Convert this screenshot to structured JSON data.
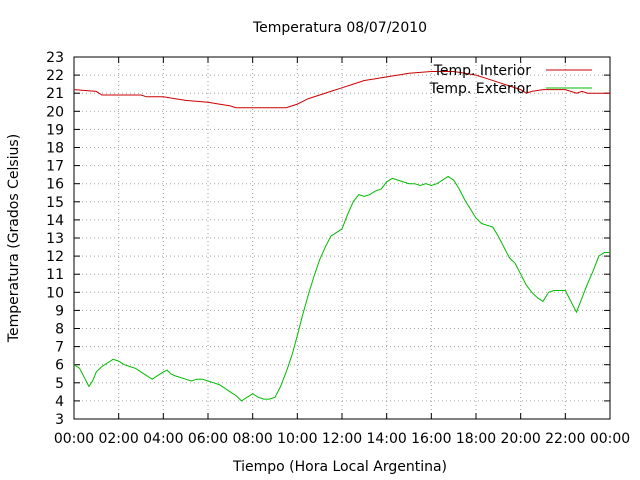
{
  "chart_data": {
    "type": "line",
    "title": "Temperatura 08/07/2010",
    "xlabel": "Tiempo (Hora Local Argentina)",
    "ylabel": "Temperatura (Grados Celsius)",
    "xlim": [
      "00:00",
      "24:00"
    ],
    "ylim": [
      3,
      23
    ],
    "grid": true,
    "legend_position": "top-right",
    "x_tick_labels": [
      "00:00",
      "02:00",
      "04:00",
      "06:00",
      "08:00",
      "10:00",
      "12:00",
      "14:00",
      "16:00",
      "18:00",
      "20:00",
      "22:00",
      "00:00"
    ],
    "y_tick_labels": [
      "3",
      "4",
      "5",
      "6",
      "7",
      "8",
      "9",
      "10",
      "11",
      "12",
      "13",
      "14",
      "15",
      "16",
      "17",
      "18",
      "19",
      "20",
      "21",
      "22",
      "23"
    ],
    "series": [
      {
        "name": "Temp. Interior",
        "color": "#cc0000",
        "x": [
          "00:00",
          "01:00",
          "01:15",
          "02:00",
          "03:00",
          "03:15",
          "04:00",
          "04:30",
          "05:00",
          "06:00",
          "06:30",
          "07:00",
          "07:15",
          "07:30",
          "08:00",
          "09:00",
          "09:30",
          "10:00",
          "10:30",
          "11:00",
          "11:30",
          "12:00",
          "12:30",
          "13:00",
          "13:30",
          "14:00",
          "14:30",
          "15:00",
          "16:00",
          "16:30",
          "17:00",
          "17:30",
          "18:00",
          "18:30",
          "19:00",
          "19:30",
          "20:00",
          "20:15",
          "20:30",
          "21:00",
          "21:30",
          "22:00",
          "22:15",
          "22:30",
          "22:45",
          "23:00",
          "23:30",
          "24:00"
        ],
        "values": [
          21.2,
          21.1,
          20.9,
          20.9,
          20.9,
          20.8,
          20.8,
          20.7,
          20.6,
          20.5,
          20.4,
          20.3,
          20.2,
          20.2,
          20.2,
          20.2,
          20.2,
          20.4,
          20.7,
          20.9,
          21.1,
          21.3,
          21.5,
          21.7,
          21.8,
          21.9,
          22.0,
          22.1,
          22.2,
          22.2,
          22.2,
          22.1,
          22.0,
          21.8,
          21.6,
          21.4,
          21.2,
          21.0,
          21.1,
          21.2,
          21.2,
          21.2,
          21.1,
          21.0,
          21.1,
          21.0,
          21.0,
          21.0
        ]
      },
      {
        "name": "Temp. Exterior",
        "color": "#00bb00",
        "x": [
          "00:00",
          "00:15",
          "00:30",
          "00:40",
          "00:50",
          "01:00",
          "01:15",
          "01:30",
          "01:45",
          "02:00",
          "02:15",
          "02:30",
          "02:45",
          "03:00",
          "03:15",
          "03:30",
          "03:45",
          "04:00",
          "04:10",
          "04:20",
          "04:30",
          "04:45",
          "05:00",
          "05:15",
          "05:30",
          "05:45",
          "06:00",
          "06:15",
          "06:30",
          "06:45",
          "07:00",
          "07:15",
          "07:30",
          "07:45",
          "08:00",
          "08:15",
          "08:30",
          "08:45",
          "09:00",
          "09:15",
          "09:30",
          "09:45",
          "10:00",
          "10:15",
          "10:30",
          "10:45",
          "11:00",
          "11:15",
          "11:30",
          "11:45",
          "12:00",
          "12:15",
          "12:30",
          "12:45",
          "13:00",
          "13:15",
          "13:30",
          "13:45",
          "14:00",
          "14:15",
          "14:30",
          "14:45",
          "15:00",
          "15:15",
          "15:30",
          "15:45",
          "16:00",
          "16:15",
          "16:30",
          "16:45",
          "17:00",
          "17:15",
          "17:30",
          "17:45",
          "18:00",
          "18:15",
          "18:30",
          "18:45",
          "19:00",
          "19:15",
          "19:30",
          "19:45",
          "20:00",
          "20:15",
          "20:30",
          "20:45",
          "21:00",
          "21:15",
          "21:30",
          "21:45",
          "22:00",
          "22:15",
          "22:30",
          "22:45",
          "23:00",
          "23:15",
          "23:30",
          "23:45",
          "24:00"
        ],
        "values": [
          6.0,
          5.8,
          5.2,
          4.8,
          5.1,
          5.6,
          5.9,
          6.1,
          6.3,
          6.2,
          6.0,
          5.9,
          5.8,
          5.6,
          5.4,
          5.2,
          5.4,
          5.6,
          5.7,
          5.5,
          5.4,
          5.3,
          5.2,
          5.1,
          5.2,
          5.2,
          5.1,
          5.0,
          4.9,
          4.7,
          4.5,
          4.3,
          4.0,
          4.2,
          4.4,
          4.2,
          4.1,
          4.1,
          4.2,
          4.8,
          5.6,
          6.5,
          7.6,
          8.8,
          9.9,
          10.9,
          11.8,
          12.5,
          13.1,
          13.3,
          13.5,
          14.3,
          15.0,
          15.4,
          15.3,
          15.4,
          15.6,
          15.7,
          16.1,
          16.3,
          16.2,
          16.1,
          16.0,
          16.0,
          15.9,
          16.0,
          15.9,
          16.0,
          16.2,
          16.4,
          16.2,
          15.7,
          15.1,
          14.6,
          14.1,
          13.8,
          13.7,
          13.6,
          13.1,
          12.5,
          11.9,
          11.6,
          11.0,
          10.4,
          10.0,
          9.7,
          9.5,
          10.0,
          10.1,
          10.1,
          10.1,
          9.5,
          8.9,
          9.7,
          10.5,
          11.2,
          12.0,
          12.2,
          12.2
        ]
      }
    ]
  }
}
